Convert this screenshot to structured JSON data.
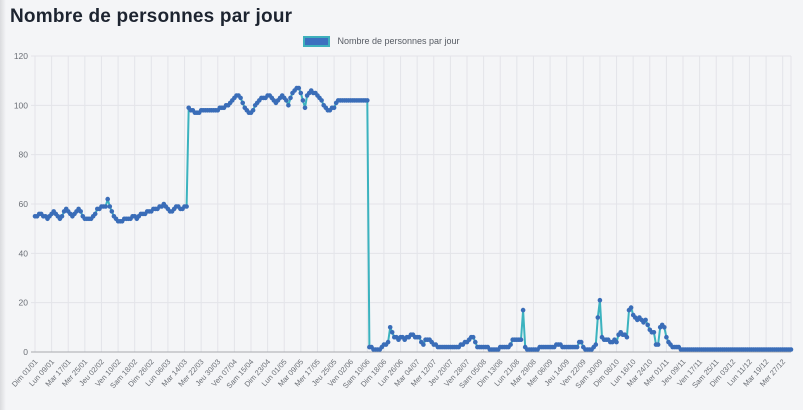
{
  "page": {
    "title": "Nombre de personnes par jour"
  },
  "legend": {
    "label": "Nombre de personnes par jour"
  },
  "colors": {
    "line": "#3bb3bf",
    "point": "#3a6db8",
    "legend_fill": "#3c70bf",
    "legend_border": "#3eb0bc",
    "grid": "#e3e4e9",
    "zero_line": "#a7a9ae",
    "tick_text": "#6b6f76",
    "title_text": "#1d2430",
    "page_bg": "#f4f5f7"
  },
  "chart_data": {
    "type": "line",
    "title": "Nombre de personnes par jour",
    "xlabel": "",
    "ylabel": "",
    "grid": true,
    "legend_position": "top",
    "ylim": [
      0,
      120
    ],
    "yticks": [
      0,
      20,
      40,
      60,
      80,
      100,
      120
    ],
    "x_tick_interval_days": 8,
    "x_tick_labels": [
      "Dim 01/01",
      "Lun 09/01",
      "Mar 17/01",
      "Mer 25/01",
      "Jeu 02/02",
      "Ven 10/02",
      "Sam 18/02",
      "Dim 26/02",
      "Lun 06/03",
      "Mar 14/03",
      "Mer 22/03",
      "Jeu 30/03",
      "Ven 07/04",
      "Sam 15/04",
      "Dim 23/04",
      "Lun 01/05",
      "Mar 09/05",
      "Mer 17/05",
      "Jeu 25/05",
      "Ven 02/06",
      "Sam 10/06",
      "Dim 18/06",
      "Lun 26/06",
      "Mar 04/07",
      "Mer 12/07",
      "Jeu 20/07",
      "Ven 28/07",
      "Sam 05/08",
      "Dim 13/08",
      "Lun 21/08",
      "Mar 29/08",
      "Mer 06/09",
      "Jeu 14/09",
      "Ven 22/09",
      "Sam 30/09",
      "Dim 08/10",
      "Lun 16/10",
      "Mar 24/10",
      "Mer 01/11",
      "Jeu 09/11",
      "Ven 17/11",
      "Sam 25/11",
      "Dim 03/12",
      "Lun 11/12",
      "Mar 19/12",
      "Mer 27/12"
    ],
    "series": [
      {
        "name": "Nombre de personnes par jour",
        "values": [
          55,
          55,
          56,
          56,
          55,
          55,
          54,
          55,
          56,
          57,
          56,
          55,
          54,
          55,
          57,
          58,
          57,
          56,
          55,
          56,
          57,
          58,
          57,
          55,
          54,
          54,
          54,
          54,
          55,
          56,
          58,
          58,
          59,
          59,
          59,
          62,
          59,
          57,
          55,
          54,
          53,
          53,
          53,
          54,
          54,
          54,
          54,
          55,
          55,
          54,
          55,
          56,
          56,
          56,
          57,
          57,
          57,
          58,
          58,
          58,
          59,
          59,
          60,
          59,
          58,
          57,
          57,
          58,
          59,
          59,
          58,
          58,
          59,
          59,
          99,
          98,
          98,
          97,
          97,
          97,
          98,
          98,
          98,
          98,
          98,
          98,
          98,
          98,
          98,
          99,
          99,
          99,
          100,
          100,
          101,
          102,
          103,
          104,
          104,
          103,
          101,
          99,
          98,
          97,
          97,
          98,
          100,
          101,
          102,
          103,
          103,
          103,
          104,
          104,
          103,
          102,
          101,
          102,
          103,
          104,
          103,
          102,
          100,
          103,
          105,
          106,
          107,
          107,
          105,
          102,
          99,
          104,
          105,
          106,
          105,
          105,
          104,
          103,
          102,
          100,
          99,
          98,
          98,
          99,
          99,
          101,
          102,
          102,
          102,
          102,
          102,
          102,
          102,
          102,
          102,
          102,
          102,
          102,
          102,
          102,
          102,
          2,
          2,
          1,
          1,
          1,
          1,
          2,
          3,
          3,
          4,
          10,
          8,
          6,
          6,
          5,
          6,
          6,
          5,
          6,
          6,
          7,
          7,
          6,
          6,
          6,
          4,
          3,
          5,
          5,
          5,
          4,
          3,
          3,
          2,
          2,
          2,
          2,
          2,
          2,
          2,
          2,
          2,
          2,
          2,
          3,
          3,
          4,
          4,
          5,
          6,
          6,
          4,
          2,
          2,
          2,
          2,
          2,
          2,
          1,
          1,
          1,
          1,
          1,
          2,
          2,
          2,
          2,
          2,
          3,
          5,
          5,
          5,
          5,
          5,
          17,
          2,
          1,
          1,
          1,
          1,
          1,
          1,
          2,
          2,
          2,
          2,
          2,
          2,
          2,
          2,
          3,
          3,
          3,
          2,
          2,
          2,
          2,
          2,
          2,
          2,
          2,
          4,
          4,
          2,
          1,
          1,
          1,
          1,
          2,
          3,
          14,
          21,
          6,
          5,
          5,
          5,
          4,
          4,
          5,
          4,
          7,
          8,
          7,
          7,
          6,
          17,
          18,
          15,
          14,
          13,
          14,
          13,
          12,
          13,
          11,
          9,
          8,
          8,
          3,
          3,
          10,
          11,
          10,
          6,
          4,
          3,
          2,
          2,
          2,
          2,
          1,
          1,
          1,
          1,
          1,
          1,
          1,
          1,
          1,
          1,
          1,
          1,
          1,
          1,
          1,
          1,
          1,
          1,
          1,
          1,
          1,
          1,
          1,
          1,
          1,
          1,
          1,
          1,
          1,
          1,
          1,
          1,
          1,
          1,
          1,
          1,
          1,
          1,
          1,
          1,
          1,
          1,
          1,
          1,
          1,
          1,
          1,
          1,
          1,
          1,
          1,
          1,
          1,
          1
        ]
      }
    ]
  }
}
